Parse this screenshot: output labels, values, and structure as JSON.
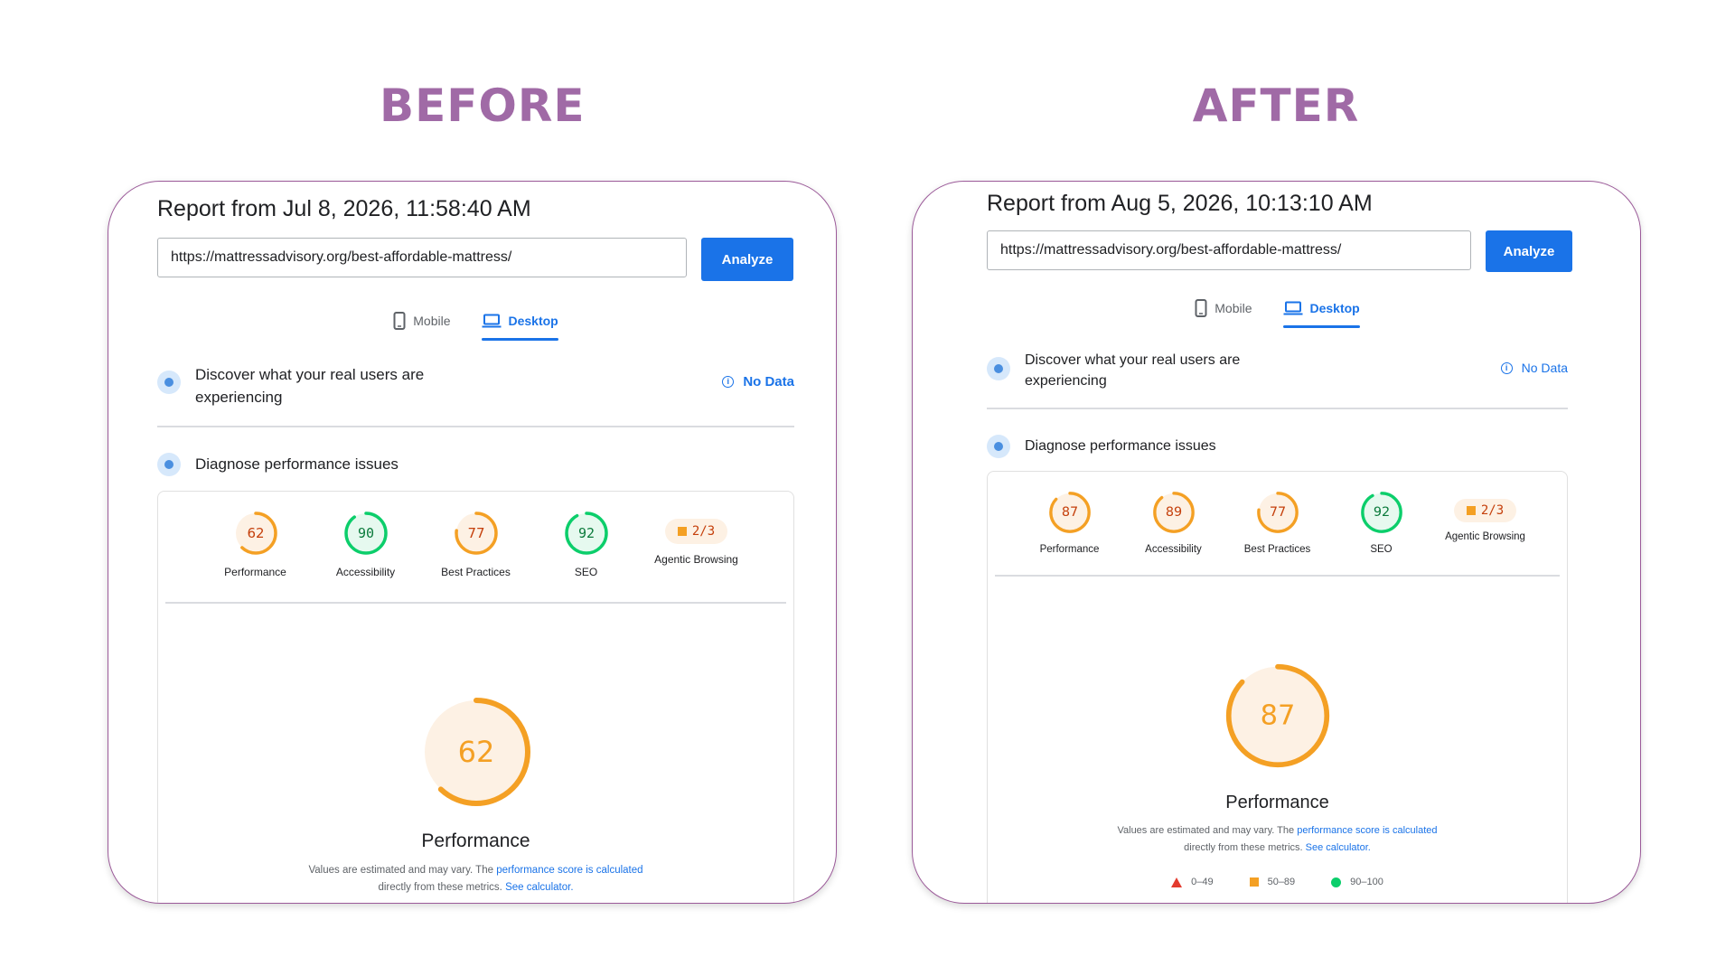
{
  "before": {
    "heading": "BEFORE",
    "report_title": "Report from Jul 8, 2026, 11:58:40 AM",
    "url_value": "https://mattressadvisory.org/best-affordable-mattress/",
    "analyze_label": "Analyze",
    "tabs": {
      "mobile": "Mobile",
      "desktop": "Desktop",
      "active": "desktop"
    },
    "field_data": {
      "text": "Discover what your real users are experiencing",
      "status": "No Data"
    },
    "diagnose_label": "Diagnose performance issues",
    "scores": [
      {
        "label": "Performance",
        "value": "62",
        "fraction": 0.62,
        "color": "#f4a024",
        "text_color": "#c5400c",
        "bg": "#fdf1e4"
      },
      {
        "label": "Accessibility",
        "value": "90",
        "fraction": 0.9,
        "color": "#0cce6b",
        "text_color": "#0a7a3b",
        "bg": "#e6f9ef"
      },
      {
        "label": "Best Practices",
        "value": "77",
        "fraction": 0.77,
        "color": "#f4a024",
        "text_color": "#c5400c",
        "bg": "#fdf1e4"
      },
      {
        "label": "SEO",
        "value": "92",
        "fraction": 0.92,
        "color": "#0cce6b",
        "text_color": "#0a7a3b",
        "bg": "#e6f9ef"
      }
    ],
    "agentic": {
      "label": "Agentic Browsing",
      "value": "2/3"
    },
    "main_score": {
      "value": "62",
      "fraction": 0.62,
      "title": "Performance"
    },
    "note": {
      "prefix": "Values are estimated and may vary. The ",
      "link1": "performance score is calculated",
      "middle": "directly from these metrics. ",
      "link2": "See calculator."
    }
  },
  "after": {
    "heading": "AFTER",
    "report_title": "Report from Aug 5, 2026, 10:13:10 AM",
    "url_value": "https://mattressadvisory.org/best-affordable-mattress/",
    "analyze_label": "Analyze",
    "tabs": {
      "mobile": "Mobile",
      "desktop": "Desktop",
      "active": "desktop"
    },
    "field_data": {
      "text": "Discover what your real users are experiencing",
      "status": "No Data"
    },
    "diagnose_label": "Diagnose performance issues",
    "scores": [
      {
        "label": "Performance",
        "value": "87",
        "fraction": 0.87,
        "color": "#f4a024",
        "text_color": "#c5400c",
        "bg": "#fdf1e4"
      },
      {
        "label": "Accessibility",
        "value": "89",
        "fraction": 0.89,
        "color": "#f4a024",
        "text_color": "#c5400c",
        "bg": "#fdf1e4"
      },
      {
        "label": "Best Practices",
        "value": "77",
        "fraction": 0.77,
        "color": "#f4a024",
        "text_color": "#c5400c",
        "bg": "#fdf1e4"
      },
      {
        "label": "SEO",
        "value": "92",
        "fraction": 0.92,
        "color": "#0cce6b",
        "text_color": "#0a7a3b",
        "bg": "#e6f9ef"
      }
    ],
    "agentic": {
      "label": "Agentic Browsing",
      "value": "2/3"
    },
    "main_score": {
      "value": "87",
      "fraction": 0.87,
      "title": "Performance"
    },
    "note": {
      "prefix": "Values are estimated and may vary. The ",
      "link1": "performance score is calculated",
      "middle": "directly from these metrics. ",
      "link2": "See calculator."
    },
    "legend": [
      {
        "shape": "triangle",
        "range": "0–49"
      },
      {
        "shape": "square",
        "range": "50–89"
      },
      {
        "shape": "circle",
        "range": "90–100"
      }
    ]
  }
}
